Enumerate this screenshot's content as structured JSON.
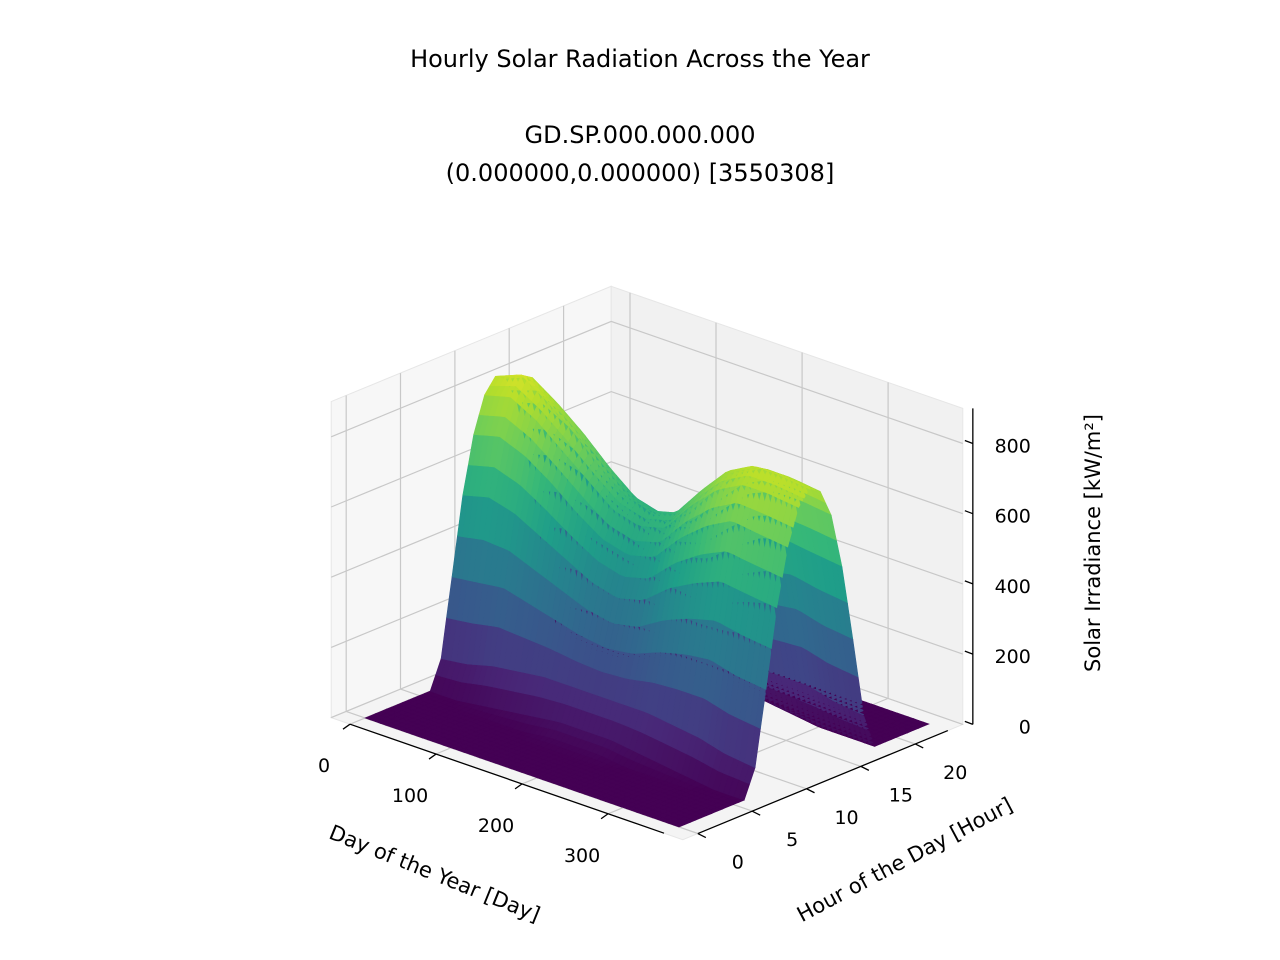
{
  "chart_data": {
    "type": "surface",
    "title": "Hourly Solar Radiation Across the Year",
    "subtitle_line1": "GD.SP.000.000.000",
    "subtitle_line2": "(0.000000,0.000000) [3550308]",
    "xlabel": "Day of the Year [Day]",
    "ylabel": "Hour of the Day [Hour]",
    "zlabel": "Solar Irradiance [kW/m²]",
    "x_ticks": [
      "0",
      "100",
      "200",
      "300"
    ],
    "y_ticks": [
      "0",
      "5",
      "10",
      "15",
      "20"
    ],
    "z_ticks": [
      "0",
      "200",
      "400",
      "600",
      "800"
    ],
    "xlim": [
      0,
      365
    ],
    "ylim": [
      0,
      23
    ],
    "zlim": [
      0,
      900
    ],
    "colormap": "viridis",
    "grid": true,
    "day_samples": [
      0,
      30,
      60,
      90,
      120,
      150,
      180,
      210,
      240,
      270,
      300,
      330,
      364
    ],
    "hours": [
      0,
      1,
      2,
      3,
      4,
      5,
      6,
      7,
      8,
      9,
      10,
      11,
      12,
      13,
      14,
      15,
      16,
      17,
      18,
      19,
      20,
      21,
      22,
      23
    ],
    "irradiance": [
      [
        0,
        0,
        0,
        0,
        0,
        0,
        0,
        80,
        300,
        520,
        680,
        780,
        820,
        800,
        720,
        560,
        340,
        110,
        0,
        0,
        0,
        0,
        0,
        0
      ],
      [
        0,
        0,
        0,
        0,
        0,
        0,
        0,
        90,
        310,
        540,
        700,
        800,
        850,
        830,
        740,
        580,
        360,
        120,
        0,
        0,
        0,
        0,
        0,
        0
      ],
      [
        0,
        0,
        0,
        0,
        0,
        0,
        10,
        110,
        320,
        520,
        670,
        760,
        800,
        780,
        700,
        560,
        360,
        130,
        0,
        0,
        0,
        0,
        0,
        0
      ],
      [
        0,
        0,
        0,
        0,
        0,
        0,
        20,
        120,
        300,
        480,
        620,
        700,
        740,
        720,
        650,
        520,
        340,
        130,
        10,
        0,
        0,
        0,
        0,
        0
      ],
      [
        0,
        0,
        0,
        0,
        0,
        0,
        30,
        130,
        280,
        440,
        560,
        640,
        670,
        650,
        590,
        480,
        320,
        130,
        20,
        0,
        0,
        0,
        0,
        0
      ],
      [
        0,
        0,
        0,
        0,
        0,
        10,
        40,
        130,
        260,
        400,
        510,
        580,
        610,
        590,
        540,
        440,
        300,
        130,
        30,
        0,
        0,
        0,
        0,
        0
      ],
      [
        0,
        0,
        0,
        0,
        0,
        10,
        40,
        130,
        250,
        380,
        490,
        560,
        590,
        570,
        520,
        420,
        290,
        130,
        30,
        0,
        0,
        0,
        0,
        0
      ],
      [
        0,
        0,
        0,
        0,
        0,
        10,
        40,
        130,
        260,
        400,
        510,
        580,
        610,
        590,
        540,
        440,
        300,
        130,
        30,
        0,
        0,
        0,
        0,
        0
      ],
      [
        0,
        0,
        0,
        0,
        0,
        0,
        30,
        130,
        290,
        460,
        590,
        670,
        700,
        680,
        620,
        500,
        330,
        130,
        20,
        0,
        0,
        0,
        0,
        0
      ],
      [
        0,
        0,
        0,
        0,
        0,
        0,
        20,
        120,
        310,
        500,
        650,
        740,
        780,
        760,
        690,
        550,
        350,
        130,
        10,
        0,
        0,
        0,
        0,
        0
      ],
      [
        0,
        0,
        0,
        0,
        0,
        0,
        10,
        110,
        320,
        530,
        690,
        780,
        820,
        800,
        720,
        570,
        360,
        130,
        0,
        0,
        0,
        0,
        0,
        0
      ],
      [
        0,
        0,
        0,
        0,
        0,
        0,
        0,
        90,
        300,
        520,
        680,
        780,
        820,
        800,
        720,
        560,
        340,
        110,
        0,
        0,
        0,
        0,
        0,
        0
      ],
      [
        0,
        0,
        0,
        0,
        0,
        0,
        0,
        80,
        290,
        510,
        670,
        770,
        810,
        790,
        710,
        550,
        330,
        100,
        0,
        0,
        0,
        0,
        0,
        0
      ]
    ]
  }
}
